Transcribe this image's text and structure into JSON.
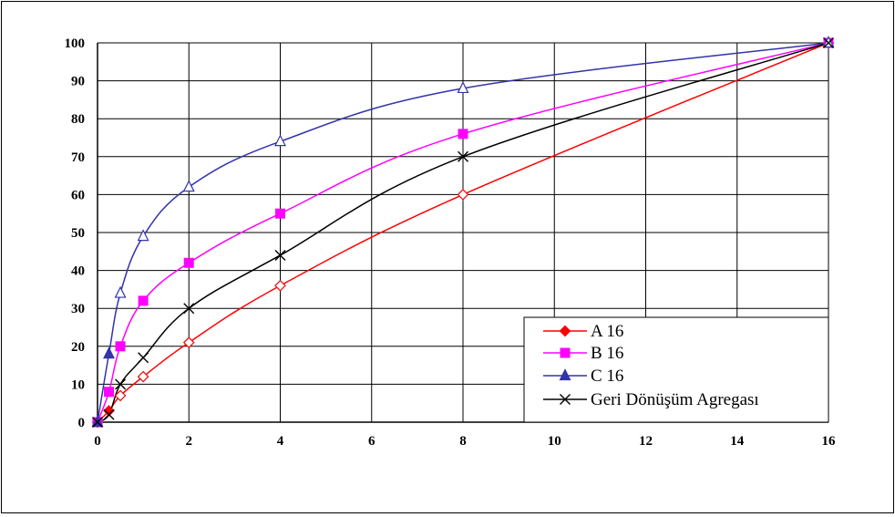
{
  "chart_data": {
    "type": "line",
    "title": "",
    "xlabel": "",
    "ylabel": "",
    "xlim": [
      0,
      16
    ],
    "ylim": [
      0,
      100
    ],
    "xticks": [
      0,
      2,
      4,
      6,
      8,
      10,
      12,
      14,
      16
    ],
    "yticks": [
      0,
      10,
      20,
      30,
      40,
      50,
      60,
      70,
      80,
      90,
      100
    ],
    "ytick_labels": [
      "0",
      "10",
      "20",
      "30",
      "40",
      "50",
      "60",
      "70",
      "80",
      "90",
      "100"
    ],
    "grid": true,
    "legend_position": "bottom-right",
    "series": [
      {
        "name": "A 16",
        "color": "#ff0000",
        "marker": "diamond",
        "x": [
          0,
          0.25,
          0.5,
          1,
          2,
          4,
          8,
          16
        ],
        "y": [
          0,
          3,
          7,
          12,
          21,
          36,
          60,
          100
        ]
      },
      {
        "name": "B 16",
        "color": "#ff00ff",
        "marker": "square",
        "x": [
          0,
          0.25,
          0.5,
          1,
          2,
          4,
          8,
          16
        ],
        "y": [
          0,
          8,
          20,
          32,
          42,
          55,
          76,
          100
        ]
      },
      {
        "name": "C  16",
        "color": "#3333aa",
        "marker": "triangle",
        "x": [
          0,
          0.25,
          0.5,
          1,
          2,
          4,
          8,
          16
        ],
        "y": [
          0,
          18,
          34,
          49,
          62,
          74,
          88,
          100
        ]
      },
      {
        "name": "Geri Dönüşüm Agregası",
        "color": "#000000",
        "marker": "x",
        "x": [
          0,
          0.25,
          0.5,
          1,
          2,
          4,
          8,
          16
        ],
        "y": [
          0,
          2,
          10,
          17,
          30,
          44,
          70,
          100
        ]
      }
    ]
  }
}
